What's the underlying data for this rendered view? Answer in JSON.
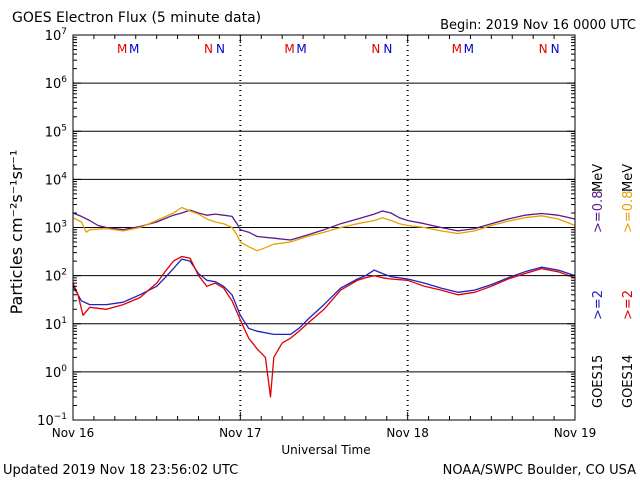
{
  "header": {
    "title": "GOES Electron Flux (5 minute data)",
    "begin": "Begin: 2019 Nov 16 0000 UTC"
  },
  "footer": {
    "updated": "Updated 2019 Nov 18 23:56:02 UTC",
    "credit": "NOAA/SWPC Boulder, CO USA"
  },
  "markers": {
    "groups": [
      {
        "day": 0,
        "m": "M M",
        "n": "N N"
      },
      {
        "day": 1,
        "m": "M M",
        "n": "N N"
      },
      {
        "day": 2,
        "m": "M M",
        "n": "N N"
      }
    ],
    "colors": {
      "first": "#e00000",
      "second": "#0000cc"
    }
  },
  "side_labels": [
    {
      "text": "GOES15",
      "color": "#000000"
    },
    {
      "text": "GOES14",
      "color": "#000000"
    },
    {
      "text": ">=2",
      "color": "#2020c0"
    },
    {
      "text": ">=2",
      "color": "#e00000"
    },
    {
      "text": ">=0.8",
      "color": "#5a1a8a"
    },
    {
      "text": ">=0.8",
      "color": "#e8a000"
    },
    {
      "text": "MeV",
      "color": "#000000"
    },
    {
      "text": "MeV",
      "color": "#000000"
    }
  ],
  "chart_data": {
    "type": "line",
    "title": "GOES Electron Flux (5 minute data)",
    "xlabel": "Universal Time",
    "ylabel": "Particles cm⁻²s⁻¹sr⁻¹",
    "x_unit": "days since 2019 Nov 16 0000 UTC",
    "x_ticks": [
      "Nov 16",
      "Nov 17",
      "Nov 18",
      "Nov 19"
    ],
    "xlim": [
      0,
      3
    ],
    "y_scale": "log",
    "ylim": [
      0.1,
      10000000
    ],
    "y_tick_exponents": [
      -1,
      0,
      1,
      2,
      3,
      4,
      5,
      6,
      7
    ],
    "threshold": {
      "value": 1000,
      "style": "dashed"
    },
    "grid": "horizontal lines at decades",
    "series": [
      {
        "name": "GOES15 >=0.8 MeV",
        "color": "#5a1a8a",
        "points": [
          [
            0.0,
            2000
          ],
          [
            0.05,
            1700
          ],
          [
            0.1,
            1400
          ],
          [
            0.15,
            1100
          ],
          [
            0.2,
            1000
          ],
          [
            0.3,
            900
          ],
          [
            0.4,
            1050
          ],
          [
            0.5,
            1300
          ],
          [
            0.6,
            1800
          ],
          [
            0.65,
            2000
          ],
          [
            0.7,
            2300
          ],
          [
            0.75,
            2000
          ],
          [
            0.8,
            1800
          ],
          [
            0.85,
            1900
          ],
          [
            0.9,
            1800
          ],
          [
            0.95,
            1700
          ],
          [
            0.98,
            1200
          ],
          [
            1.0,
            900
          ],
          [
            1.05,
            800
          ],
          [
            1.1,
            650
          ],
          [
            1.2,
            600
          ],
          [
            1.3,
            550
          ],
          [
            1.4,
            700
          ],
          [
            1.5,
            900
          ],
          [
            1.6,
            1200
          ],
          [
            1.7,
            1500
          ],
          [
            1.8,
            1900
          ],
          [
            1.85,
            2200
          ],
          [
            1.9,
            2000
          ],
          [
            1.95,
            1600
          ],
          [
            2.0,
            1400
          ],
          [
            2.1,
            1200
          ],
          [
            2.2,
            1000
          ],
          [
            2.3,
            850
          ],
          [
            2.4,
            950
          ],
          [
            2.5,
            1200
          ],
          [
            2.6,
            1500
          ],
          [
            2.7,
            1800
          ],
          [
            2.8,
            1950
          ],
          [
            2.9,
            1800
          ],
          [
            3.0,
            1500
          ]
        ]
      },
      {
        "name": "GOES14 >=0.8 MeV",
        "color": "#e8a000",
        "points": [
          [
            0.0,
            1600
          ],
          [
            0.05,
            1300
          ],
          [
            0.08,
            800
          ],
          [
            0.1,
            900
          ],
          [
            0.2,
            950
          ],
          [
            0.3,
            850
          ],
          [
            0.4,
            1000
          ],
          [
            0.5,
            1400
          ],
          [
            0.6,
            2000
          ],
          [
            0.65,
            2600
          ],
          [
            0.7,
            2200
          ],
          [
            0.75,
            1900
          ],
          [
            0.8,
            1500
          ],
          [
            0.85,
            1300
          ],
          [
            0.9,
            1200
          ],
          [
            0.95,
            1000
          ],
          [
            0.98,
            700
          ],
          [
            1.0,
            500
          ],
          [
            1.05,
            400
          ],
          [
            1.1,
            330
          ],
          [
            1.15,
            380
          ],
          [
            1.2,
            450
          ],
          [
            1.3,
            500
          ],
          [
            1.4,
            650
          ],
          [
            1.5,
            800
          ],
          [
            1.6,
            1000
          ],
          [
            1.7,
            1200
          ],
          [
            1.8,
            1400
          ],
          [
            1.85,
            1600
          ],
          [
            1.9,
            1400
          ],
          [
            1.95,
            1200
          ],
          [
            2.0,
            1100
          ],
          [
            2.1,
            1000
          ],
          [
            2.2,
            850
          ],
          [
            2.3,
            750
          ],
          [
            2.4,
            850
          ],
          [
            2.5,
            1100
          ],
          [
            2.6,
            1350
          ],
          [
            2.7,
            1600
          ],
          [
            2.8,
            1750
          ],
          [
            2.9,
            1500
          ],
          [
            3.0,
            1100
          ]
        ]
      },
      {
        "name": "GOES15 >=2 MeV",
        "color": "#2020c0",
        "points": [
          [
            0.0,
            60
          ],
          [
            0.03,
            40
          ],
          [
            0.05,
            30
          ],
          [
            0.1,
            25
          ],
          [
            0.2,
            25
          ],
          [
            0.3,
            28
          ],
          [
            0.4,
            40
          ],
          [
            0.5,
            60
          ],
          [
            0.55,
            90
          ],
          [
            0.6,
            140
          ],
          [
            0.65,
            220
          ],
          [
            0.7,
            200
          ],
          [
            0.75,
            110
          ],
          [
            0.8,
            80
          ],
          [
            0.85,
            75
          ],
          [
            0.9,
            60
          ],
          [
            0.95,
            40
          ],
          [
            1.0,
            15
          ],
          [
            1.05,
            8
          ],
          [
            1.1,
            7
          ],
          [
            1.2,
            6
          ],
          [
            1.3,
            6
          ],
          [
            1.35,
            8
          ],
          [
            1.4,
            12
          ],
          [
            1.5,
            25
          ],
          [
            1.6,
            55
          ],
          [
            1.7,
            85
          ],
          [
            1.75,
            100
          ],
          [
            1.8,
            130
          ],
          [
            1.85,
            110
          ],
          [
            1.9,
            95
          ],
          [
            2.0,
            85
          ],
          [
            2.1,
            70
          ],
          [
            2.2,
            55
          ],
          [
            2.3,
            45
          ],
          [
            2.4,
            50
          ],
          [
            2.5,
            65
          ],
          [
            2.6,
            90
          ],
          [
            2.7,
            120
          ],
          [
            2.8,
            150
          ],
          [
            2.9,
            130
          ],
          [
            3.0,
            100
          ]
        ]
      },
      {
        "name": "GOES14 >=2 MeV",
        "color": "#e00000",
        "points": [
          [
            0.0,
            70
          ],
          [
            0.03,
            40
          ],
          [
            0.06,
            15
          ],
          [
            0.1,
            22
          ],
          [
            0.2,
            20
          ],
          [
            0.3,
            25
          ],
          [
            0.4,
            35
          ],
          [
            0.5,
            70
          ],
          [
            0.55,
            120
          ],
          [
            0.6,
            200
          ],
          [
            0.65,
            250
          ],
          [
            0.7,
            230
          ],
          [
            0.75,
            100
          ],
          [
            0.8,
            60
          ],
          [
            0.85,
            70
          ],
          [
            0.9,
            55
          ],
          [
            0.95,
            30
          ],
          [
            1.0,
            12
          ],
          [
            1.05,
            5
          ],
          [
            1.1,
            3
          ],
          [
            1.15,
            2
          ],
          [
            1.18,
            0.3
          ],
          [
            1.2,
            2
          ],
          [
            1.25,
            4
          ],
          [
            1.3,
            5
          ],
          [
            1.35,
            7
          ],
          [
            1.4,
            10
          ],
          [
            1.5,
            20
          ],
          [
            1.6,
            50
          ],
          [
            1.7,
            80
          ],
          [
            1.75,
            90
          ],
          [
            1.8,
            100
          ],
          [
            1.85,
            90
          ],
          [
            1.9,
            85
          ],
          [
            2.0,
            80
          ],
          [
            2.1,
            60
          ],
          [
            2.2,
            50
          ],
          [
            2.3,
            40
          ],
          [
            2.4,
            45
          ],
          [
            2.5,
            60
          ],
          [
            2.6,
            85
          ],
          [
            2.7,
            110
          ],
          [
            2.8,
            140
          ],
          [
            2.9,
            120
          ],
          [
            3.0,
            90
          ]
        ]
      }
    ]
  }
}
